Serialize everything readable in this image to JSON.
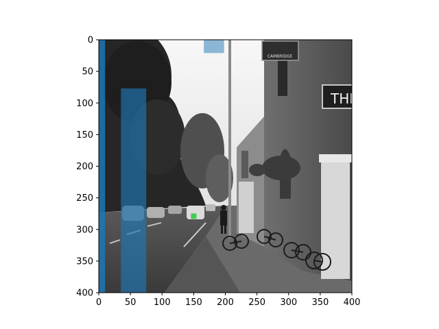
{
  "chart_data": {
    "type": "image-with-overlays",
    "image": {
      "description_tokens": [
        "street",
        "pub-building",
        "parked-cars",
        "bicycles",
        "pedestrian",
        "street-lamp-pole",
        "trees",
        "sky"
      ],
      "grayscale": true,
      "pub_sign_text": "CAMBRIDGE",
      "facade_sign_text": "THI"
    },
    "x_axis": {
      "range": [
        0,
        400
      ],
      "ticks": [
        "0",
        "50",
        "100",
        "150",
        "200",
        "250",
        "300",
        "350",
        "400"
      ]
    },
    "y_axis": {
      "range": [
        0,
        400
      ],
      "inverted": true,
      "ticks": [
        "0",
        "50",
        "100",
        "150",
        "200",
        "250",
        "300",
        "350",
        "400"
      ]
    },
    "overlays": [
      {
        "x0": 0,
        "x1": 10,
        "y0": 0,
        "y1": 400,
        "color": "#1f77b4",
        "opacity": 0.85
      },
      {
        "x0": 35,
        "x1": 75,
        "y0": 77,
        "y1": 400,
        "color": "#1f77b4",
        "opacity": 0.65
      },
      {
        "x0": 166,
        "x1": 198,
        "y0": 0,
        "y1": 21,
        "color": "#1f77b4",
        "opacity": 0.5
      }
    ],
    "marker": {
      "x": 150,
      "y": 279,
      "color": "#2ecc40"
    }
  }
}
